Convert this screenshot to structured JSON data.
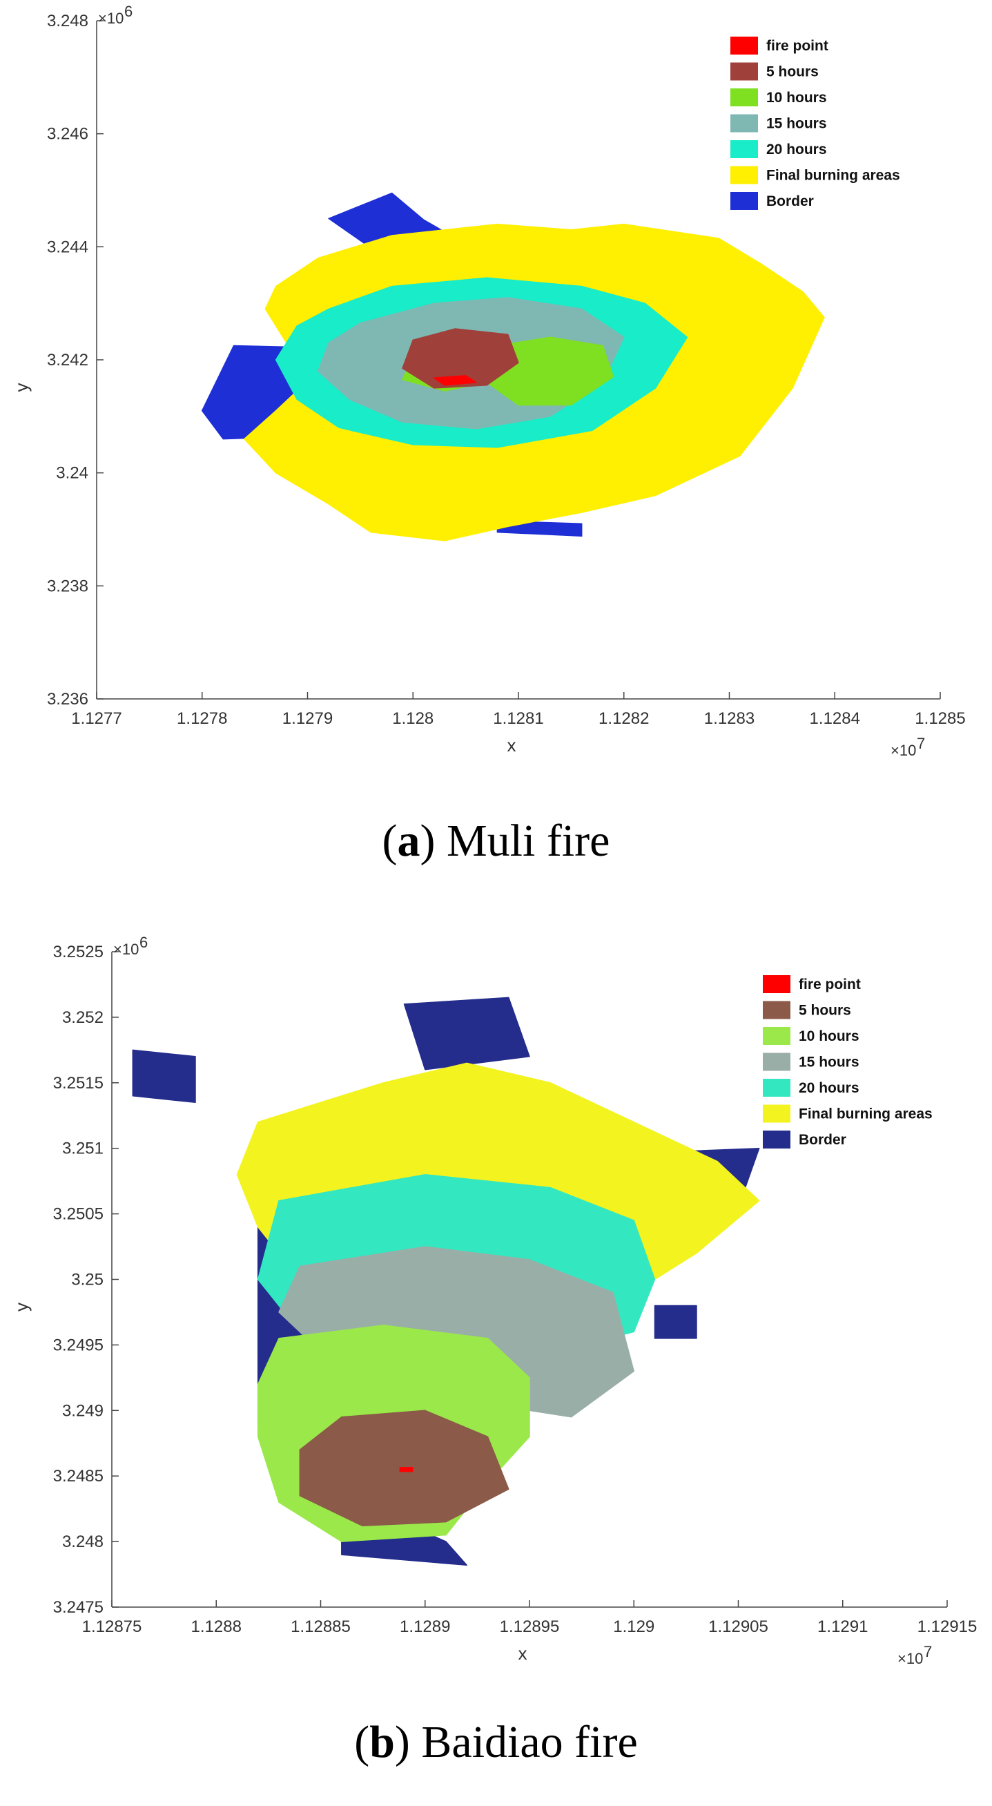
{
  "chart_data": [
    {
      "type": "heatmap",
      "caption_prefix": "(",
      "caption_letter": "a",
      "caption_rest": ") Muli fire",
      "xlabel": "x",
      "ylabel": "y",
      "x_exponent": "×10",
      "x_exponent_power": "7",
      "y_exponent": "×10",
      "y_exponent_power": "6",
      "xlim": [
        1.1277,
        1.1285
      ],
      "ylim": [
        3.236,
        3.248
      ],
      "x_ticks": [
        "1.1277",
        "1.1278",
        "1.1279",
        "1.128",
        "1.1281",
        "1.1282",
        "1.1283",
        "1.1284",
        "1.1285"
      ],
      "y_ticks": [
        "3.236",
        "3.238",
        "3.24",
        "3.242",
        "3.244",
        "3.246",
        "3.248"
      ],
      "legend_placement": "top-right",
      "legend": [
        {
          "label": "fire point",
          "color": "#ff0000"
        },
        {
          "label": "5 hours",
          "color": "#a0403a"
        },
        {
          "label": "10 hours",
          "color": "#7ee020"
        },
        {
          "label": "15 hours",
          "color": "#7fb8b2"
        },
        {
          "label": "20 hours",
          "color": "#19ecc8"
        },
        {
          "label": "Final burning areas",
          "color": "#ffef00"
        },
        {
          "label": "Border",
          "color": "#1e2fd6"
        }
      ],
      "regions": [
        {
          "name": "Border",
          "color": "#1e2fd6",
          "polygons": [
            [
              [
                1.12798,
                3.24495
              ],
              [
                1.12801,
                3.24448
              ],
              [
                1.12805,
                3.24405
              ],
              [
                1.12796,
                3.24398
              ],
              [
                1.12792,
                3.2445
              ]
            ],
            [
              [
                1.12783,
                3.24225
              ],
              [
                1.1279,
                3.24222
              ],
              [
                1.1279,
                3.24065
              ],
              [
                1.12782,
                3.2406
              ],
              [
                1.1278,
                3.2411
              ]
            ],
            [
              [
                1.12796,
                3.23988
              ],
              [
                1.12805,
                3.2398
              ],
              [
                1.12803,
                3.23936
              ],
              [
                1.12794,
                3.2395
              ]
            ],
            [
              [
                1.12808,
                3.23915
              ],
              [
                1.12816,
                3.2391
              ],
              [
                1.12816,
                3.23888
              ],
              [
                1.12808,
                3.23895
              ]
            ],
            [
              [
                1.12815,
                3.24245
              ],
              [
                1.12825,
                3.24248
              ],
              [
                1.12824,
                3.24
              ],
              [
                1.12815,
                3.2401
              ]
            ]
          ]
        },
        {
          "name": "Final burning areas",
          "color": "#ffef00",
          "polygons": [
            [
              [
                1.12791,
                3.2438
              ],
              [
                1.12798,
                3.2442
              ],
              [
                1.12808,
                3.2444
              ],
              [
                1.12815,
                3.2443
              ],
              [
                1.1282,
                3.2444
              ],
              [
                1.12829,
                3.24415
              ],
              [
                1.12833,
                3.2437
              ],
              [
                1.12837,
                3.2432
              ],
              [
                1.12839,
                3.24275
              ],
              [
                1.12836,
                3.2415
              ],
              [
                1.12831,
                3.2403
              ],
              [
                1.12823,
                3.2396
              ],
              [
                1.12816,
                3.2393
              ],
              [
                1.12809,
                3.23905
              ],
              [
                1.12803,
                3.2388
              ],
              [
                1.12796,
                3.23895
              ],
              [
                1.12792,
                3.23945
              ],
              [
                1.12787,
                3.24
              ],
              [
                1.12784,
                3.2406
              ],
              [
                1.12787,
                3.2411
              ],
              [
                1.12791,
                3.2418
              ],
              [
                1.12788,
                3.2423
              ],
              [
                1.12786,
                3.2429
              ],
              [
                1.12787,
                3.2433
              ]
            ]
          ]
        },
        {
          "name": "20 hours",
          "color": "#19ecc8",
          "polygons": [
            [
              [
                1.12792,
                3.2429
              ],
              [
                1.12798,
                3.2433
              ],
              [
                1.12807,
                3.24345
              ],
              [
                1.12816,
                3.2433
              ],
              [
                1.12822,
                3.243
              ],
              [
                1.12826,
                3.2424
              ],
              [
                1.12823,
                3.2415
              ],
              [
                1.12817,
                3.24075
              ],
              [
                1.12808,
                3.24045
              ],
              [
                1.128,
                3.2405
              ],
              [
                1.12793,
                3.2408
              ],
              [
                1.12789,
                3.2413
              ],
              [
                1.12787,
                3.242
              ],
              [
                1.12789,
                3.2426
              ]
            ]
          ]
        },
        {
          "name": "15 hours",
          "color": "#7fb8b2",
          "polygons": [
            [
              [
                1.12795,
                3.24265
              ],
              [
                1.12802,
                3.243
              ],
              [
                1.12809,
                3.2431
              ],
              [
                1.12816,
                3.2429
              ],
              [
                1.1282,
                3.2424
              ],
              [
                1.12818,
                3.2416
              ],
              [
                1.12813,
                3.241
              ],
              [
                1.12806,
                3.24078
              ],
              [
                1.12799,
                3.2409
              ],
              [
                1.12794,
                3.2413
              ],
              [
                1.12791,
                3.2418
              ],
              [
                1.12792,
                3.2423
              ]
            ]
          ]
        },
        {
          "name": "10 hours",
          "color": "#7ee020",
          "polygons": [
            [
              [
                1.12808,
                3.24225
              ],
              [
                1.12813,
                3.2424
              ],
              [
                1.12818,
                3.24225
              ],
              [
                1.12819,
                3.2417
              ],
              [
                1.12815,
                3.2412
              ],
              [
                1.1281,
                3.2412
              ],
              [
                1.12807,
                3.2416
              ]
            ],
            [
              [
                1.128,
                3.24205
              ],
              [
                1.12806,
                3.2422
              ],
              [
                1.12807,
                3.2416
              ],
              [
                1.12803,
                3.24145
              ],
              [
                1.12799,
                3.24165
              ]
            ]
          ]
        },
        {
          "name": "5 hours",
          "color": "#a0403a",
          "polygons": [
            [
              [
                1.128,
                3.24235
              ],
              [
                1.12804,
                3.24255
              ],
              [
                1.12809,
                3.24245
              ],
              [
                1.1281,
                3.24195
              ],
              [
                1.12807,
                3.24155
              ],
              [
                1.12802,
                3.2415
              ],
              [
                1.12799,
                3.24185
              ]
            ]
          ]
        },
        {
          "name": "fire point",
          "color": "#ff0000",
          "polygons": [
            [
              [
                1.12802,
                3.24168
              ],
              [
                1.12805,
                3.24172
              ],
              [
                1.12806,
                3.2416
              ],
              [
                1.12803,
                3.24155
              ]
            ]
          ]
        }
      ]
    },
    {
      "type": "heatmap",
      "caption_prefix": "(",
      "caption_letter": "b",
      "caption_rest": ") Baidiao fire",
      "xlabel": "x",
      "ylabel": "y",
      "x_exponent": "×10",
      "x_exponent_power": "7",
      "y_exponent": "×10",
      "y_exponent_power": "6",
      "xlim": [
        1.12875,
        1.12915
      ],
      "ylim": [
        3.2475,
        3.2525
      ],
      "x_ticks": [
        "1.12875",
        "1.1288",
        "1.12885",
        "1.1289",
        "1.12895",
        "1.129",
        "1.12905",
        "1.1291",
        "1.12915"
      ],
      "y_ticks": [
        "3.2475",
        "3.248",
        "3.2485",
        "3.249",
        "3.2495",
        "3.25",
        "3.2505",
        "3.251",
        "3.2515",
        "3.252",
        "3.2525"
      ],
      "legend_placement": "top-right",
      "legend": [
        {
          "label": "fire point",
          "color": "#ff0000"
        },
        {
          "label": "5 hours",
          "color": "#8b5a48"
        },
        {
          "label": "10 hours",
          "color": "#9ae84a"
        },
        {
          "label": "15 hours",
          "color": "#9aaea8"
        },
        {
          "label": "20 hours",
          "color": "#33e8c0"
        },
        {
          "label": "Final burning areas",
          "color": "#f3f320"
        },
        {
          "label": "Border",
          "color": "#242c8c"
        }
      ],
      "regions": [
        {
          "name": "Border",
          "color": "#242c8c",
          "polygons": [
            [
              [
                1.12889,
                3.2521
              ],
              [
                1.12894,
                3.25215
              ],
              [
                1.12895,
                3.2517
              ],
              [
                1.1289,
                3.2516
              ]
            ],
            [
              [
                1.12876,
                3.25175
              ],
              [
                1.12879,
                3.2517
              ],
              [
                1.12879,
                3.25135
              ],
              [
                1.12876,
                3.2514
              ]
            ],
            [
              [
                1.12898,
                3.25095
              ],
              [
                1.12906,
                3.251
              ],
              [
                1.12905,
                3.25055
              ],
              [
                1.12898,
                3.2505
              ]
            ],
            [
              [
                1.12901,
                3.2498
              ],
              [
                1.12903,
                3.2498
              ],
              [
                1.12903,
                3.24955
              ],
              [
                1.12901,
                3.24955
              ]
            ],
            [
              [
                1.12882,
                3.2506
              ],
              [
                1.12885,
                3.2506
              ],
              [
                1.12884,
                3.2489
              ],
              [
                1.12882,
                3.2489
              ]
            ],
            [
              [
                1.12886,
                3.24835
              ],
              [
                1.12891,
                3.248
              ],
              [
                1.12892,
                3.24782
              ],
              [
                1.12886,
                3.2479
              ]
            ]
          ]
        },
        {
          "name": "Final burning areas",
          "color": "#f3f320",
          "polygons": [
            [
              [
                1.12882,
                3.2512
              ],
              [
                1.12888,
                3.2515
              ],
              [
                1.12892,
                3.25165
              ],
              [
                1.12896,
                3.2515
              ],
              [
                1.129,
                3.2512
              ],
              [
                1.12904,
                3.2509
              ],
              [
                1.12906,
                3.2506
              ],
              [
                1.12903,
                3.2502
              ],
              [
                1.129,
                3.2499
              ],
              [
                1.12897,
                3.2499
              ],
              [
                1.12893,
                3.2501
              ],
              [
                1.12888,
                3.2501
              ],
              [
                1.12884,
                3.25
              ],
              [
                1.12882,
                3.2504
              ],
              [
                1.12881,
                3.2508
              ]
            ]
          ]
        },
        {
          "name": "20 hours",
          "color": "#33e8c0",
          "polygons": [
            [
              [
                1.12883,
                3.2506
              ],
              [
                1.1289,
                3.2508
              ],
              [
                1.12896,
                3.2507
              ],
              [
                1.129,
                3.25045
              ],
              [
                1.12901,
                3.25
              ],
              [
                1.129,
                3.2496
              ],
              [
                1.12895,
                3.2494
              ],
              [
                1.12889,
                3.2495
              ],
              [
                1.12884,
                3.2496
              ],
              [
                1.12882,
                3.25
              ]
            ]
          ]
        },
        {
          "name": "15 hours",
          "color": "#9aaea8",
          "polygons": [
            [
              [
                1.12884,
                3.2501
              ],
              [
                1.1289,
                3.25025
              ],
              [
                1.12895,
                3.25015
              ],
              [
                1.12899,
                3.2499
              ],
              [
                1.129,
                3.2493
              ],
              [
                1.12897,
                3.24895
              ],
              [
                1.12893,
                3.24905
              ],
              [
                1.12889,
                3.24935
              ],
              [
                1.12885,
                3.24945
              ],
              [
                1.12883,
                3.24975
              ]
            ]
          ]
        },
        {
          "name": "10 hours",
          "color": "#9ae84a",
          "polygons": [
            [
              [
                1.12883,
                3.24955
              ],
              [
                1.12888,
                3.24965
              ],
              [
                1.12893,
                3.24955
              ],
              [
                1.12895,
                3.24925
              ],
              [
                1.12895,
                3.2488
              ],
              [
                1.12893,
                3.24845
              ],
              [
                1.12891,
                3.24805
              ],
              [
                1.12886,
                3.248
              ],
              [
                1.12883,
                3.2483
              ],
              [
                1.12882,
                3.2488
              ],
              [
                1.12882,
                3.2492
              ]
            ]
          ]
        },
        {
          "name": "5 hours",
          "color": "#8b5a48",
          "polygons": [
            [
              [
                1.12886,
                3.24895
              ],
              [
                1.1289,
                3.249
              ],
              [
                1.12893,
                3.2488
              ],
              [
                1.12894,
                3.2484
              ],
              [
                1.12891,
                3.24815
              ],
              [
                1.12887,
                3.24812
              ],
              [
                1.12884,
                3.24835
              ],
              [
                1.12884,
                3.2487
              ]
            ]
          ]
        },
        {
          "name": "fire point",
          "color": "#ff0000",
          "polygons": [
            [
              [
                1.128888,
                3.248565
              ],
              [
                1.128894,
                3.248565
              ],
              [
                1.128894,
                3.248535
              ],
              [
                1.128888,
                3.248535
              ]
            ]
          ]
        }
      ]
    }
  ]
}
